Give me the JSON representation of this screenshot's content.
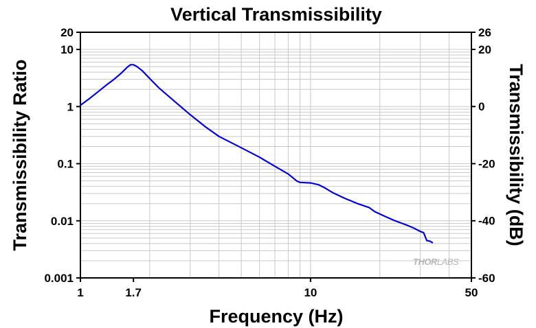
{
  "chart_data": {
    "type": "line",
    "title": "Vertical Transmissibility",
    "xlabel": "Frequency (Hz)",
    "ylabel": "Transmissibility Ratio",
    "y2label": "Transmissibility (dB)",
    "x_scale": "log",
    "y_scale": "log",
    "xlim": [
      1,
      50
    ],
    "ylim": [
      0.001,
      20
    ],
    "y2lim": [
      -60,
      26
    ],
    "x_ticks": [
      {
        "value": 1,
        "label": "1"
      },
      {
        "value": 1.7,
        "label": "1.7"
      },
      {
        "value": 10,
        "label": "10"
      },
      {
        "value": 50,
        "label": "50"
      }
    ],
    "y_ticks": [
      {
        "value": 0.001,
        "label": "0.001"
      },
      {
        "value": 0.01,
        "label": "0.01"
      },
      {
        "value": 0.1,
        "label": "0.1"
      },
      {
        "value": 1,
        "label": "1"
      },
      {
        "value": 10,
        "label": "10"
      },
      {
        "value": 20,
        "label": "20"
      }
    ],
    "y2_ticks": [
      {
        "value": -60,
        "label": "-60"
      },
      {
        "value": -40,
        "label": "-40"
      },
      {
        "value": -20,
        "label": "-20"
      },
      {
        "value": 0,
        "label": "0"
      },
      {
        "value": 20,
        "label": "20"
      },
      {
        "value": 26,
        "label": "26"
      }
    ],
    "grid": true,
    "series": [
      {
        "color": "#0000dd",
        "x": [
          1.0,
          1.1,
          1.2,
          1.3,
          1.4,
          1.5,
          1.6,
          1.65,
          1.7,
          1.75,
          1.85,
          2.0,
          2.2,
          2.5,
          3.0,
          3.5,
          4.0,
          5.0,
          6.0,
          7.0,
          8.0,
          8.7,
          9.0,
          10.0,
          10.8,
          11.5,
          12.5,
          14.0,
          16.0,
          18.0,
          19.0,
          21.0,
          23.0,
          26.0,
          28.0,
          30.0,
          31.0,
          32.0,
          33.0,
          34.0
        ],
        "y": [
          1.05,
          1.4,
          1.85,
          2.4,
          3.0,
          3.8,
          4.9,
          5.4,
          5.4,
          5.1,
          4.3,
          3.1,
          2.1,
          1.35,
          0.72,
          0.44,
          0.3,
          0.19,
          0.13,
          0.09,
          0.066,
          0.05,
          0.047,
          0.046,
          0.043,
          0.038,
          0.031,
          0.025,
          0.02,
          0.017,
          0.0145,
          0.012,
          0.0102,
          0.0085,
          0.0075,
          0.0065,
          0.0062,
          0.0045,
          0.0044,
          0.0041
        ]
      }
    ]
  },
  "watermark": {
    "text_a": "THOR",
    "text_b": "LABS"
  }
}
